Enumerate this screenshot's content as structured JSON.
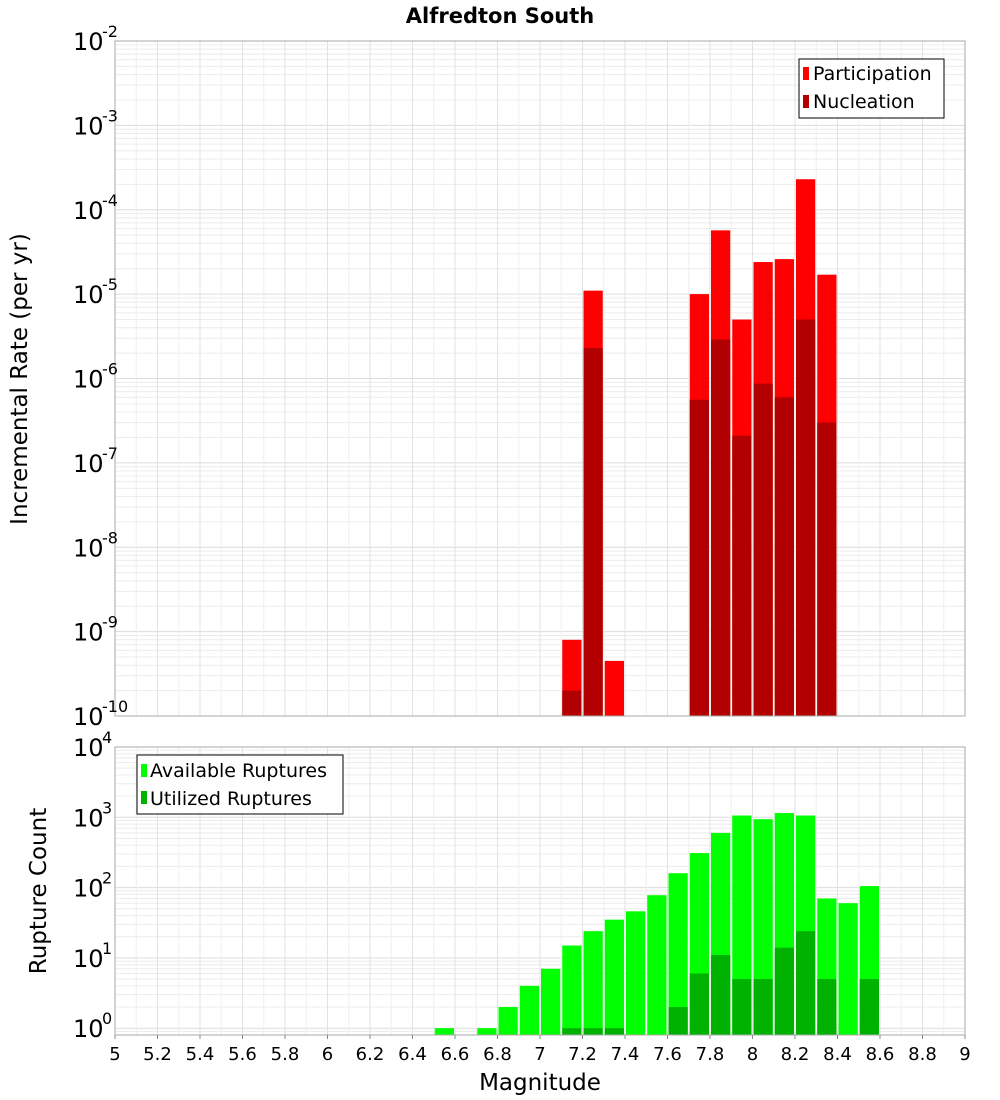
{
  "chart_data": [
    {
      "type": "bar",
      "title": "Alfredton South",
      "ylabel": "Incremental Rate (per yr)",
      "xlabel": "",
      "yscale": "log",
      "ylim": [
        1e-10,
        0.01
      ],
      "xlim": [
        5,
        9
      ],
      "bin_width": 0.1,
      "y_ticks": [
        {
          "base": "10",
          "exp": "-10",
          "value": 1e-10
        },
        {
          "base": "10",
          "exp": "-9",
          "value": 1e-09
        },
        {
          "base": "10",
          "exp": "-8",
          "value": 1e-08
        },
        {
          "base": "10",
          "exp": "-7",
          "value": 1e-07
        },
        {
          "base": "10",
          "exp": "-6",
          "value": 1e-06
        },
        {
          "base": "10",
          "exp": "-5",
          "value": 1e-05
        },
        {
          "base": "10",
          "exp": "-4",
          "value": 0.0001
        },
        {
          "base": "10",
          "exp": "-3",
          "value": 0.001
        },
        {
          "base": "10",
          "exp": "-2",
          "value": 0.01
        }
      ],
      "legend": [
        {
          "label": "Participation",
          "color": "#ff0000"
        },
        {
          "label": "Nucleation",
          "color": "#b20000"
        }
      ],
      "legend_position": "top-right",
      "series": [
        {
          "name": "Participation",
          "color": "#ff0000",
          "points": [
            {
              "x": 7.15,
              "y": 8e-10
            },
            {
              "x": 7.25,
              "y": 1.1e-05
            },
            {
              "x": 7.35,
              "y": 4.5e-10
            },
            {
              "x": 7.75,
              "y": 1e-05
            },
            {
              "x": 7.85,
              "y": 5.7e-05
            },
            {
              "x": 7.95,
              "y": 5e-06
            },
            {
              "x": 8.05,
              "y": 2.4e-05
            },
            {
              "x": 8.15,
              "y": 2.6e-05
            },
            {
              "x": 8.25,
              "y": 0.00023
            },
            {
              "x": 8.35,
              "y": 1.7e-05
            }
          ]
        },
        {
          "name": "Nucleation",
          "color": "#b20000",
          "points": [
            {
              "x": 7.15,
              "y": 2e-10
            },
            {
              "x": 7.25,
              "y": 2.3e-06
            },
            {
              "x": 7.75,
              "y": 5.6e-07
            },
            {
              "x": 7.85,
              "y": 2.9e-06
            },
            {
              "x": 7.95,
              "y": 2.1e-07
            },
            {
              "x": 8.05,
              "y": 8.7e-07
            },
            {
              "x": 8.15,
              "y": 6e-07
            },
            {
              "x": 8.25,
              "y": 5e-06
            },
            {
              "x": 8.35,
              "y": 3e-07
            }
          ]
        }
      ]
    },
    {
      "type": "bar",
      "title": "",
      "ylabel": "Rupture Count",
      "xlabel": "Magnitude",
      "yscale": "log",
      "ylim": [
        0.8,
        10000
      ],
      "xlim": [
        5,
        9
      ],
      "bin_width": 0.1,
      "x_ticks": [
        "5",
        "5.2",
        "5.4",
        "5.6",
        "5.8",
        "6",
        "6.2",
        "6.4",
        "6.6",
        "6.8",
        "7",
        "7.2",
        "7.4",
        "7.6",
        "7.8",
        "8",
        "8.2",
        "8.4",
        "8.6",
        "8.8",
        "9"
      ],
      "y_ticks": [
        {
          "base": "10",
          "exp": "0",
          "value": 1
        },
        {
          "base": "10",
          "exp": "1",
          "value": 10
        },
        {
          "base": "10",
          "exp": "2",
          "value": 100
        },
        {
          "base": "10",
          "exp": "3",
          "value": 1000
        },
        {
          "base": "10",
          "exp": "4",
          "value": 10000
        }
      ],
      "legend": [
        {
          "label": "Available Ruptures",
          "color": "#00ff00"
        },
        {
          "label": "Utilized Ruptures",
          "color": "#00b200"
        }
      ],
      "legend_position": "top-left",
      "series": [
        {
          "name": "Available Ruptures",
          "color": "#00ff00",
          "points": [
            {
              "x": 6.55,
              "y": 1
            },
            {
              "x": 6.75,
              "y": 1
            },
            {
              "x": 6.85,
              "y": 2
            },
            {
              "x": 6.95,
              "y": 4
            },
            {
              "x": 7.05,
              "y": 7
            },
            {
              "x": 7.15,
              "y": 15
            },
            {
              "x": 7.25,
              "y": 24
            },
            {
              "x": 7.35,
              "y": 35
            },
            {
              "x": 7.45,
              "y": 46
            },
            {
              "x": 7.55,
              "y": 78
            },
            {
              "x": 7.65,
              "y": 160
            },
            {
              "x": 7.75,
              "y": 310
            },
            {
              "x": 7.85,
              "y": 600
            },
            {
              "x": 7.95,
              "y": 1060
            },
            {
              "x": 8.05,
              "y": 940
            },
            {
              "x": 8.15,
              "y": 1150
            },
            {
              "x": 8.25,
              "y": 1060
            },
            {
              "x": 8.35,
              "y": 70
            },
            {
              "x": 8.45,
              "y": 60
            },
            {
              "x": 8.55,
              "y": 105
            }
          ]
        },
        {
          "name": "Utilized Ruptures",
          "color": "#00b200",
          "points": [
            {
              "x": 7.15,
              "y": 1
            },
            {
              "x": 7.25,
              "y": 1
            },
            {
              "x": 7.35,
              "y": 1
            },
            {
              "x": 7.65,
              "y": 2
            },
            {
              "x": 7.75,
              "y": 6
            },
            {
              "x": 7.85,
              "y": 11
            },
            {
              "x": 7.95,
              "y": 5
            },
            {
              "x": 8.05,
              "y": 5
            },
            {
              "x": 8.15,
              "y": 14
            },
            {
              "x": 8.25,
              "y": 24
            },
            {
              "x": 8.35,
              "y": 5
            },
            {
              "x": 8.55,
              "y": 5
            }
          ]
        }
      ]
    }
  ]
}
